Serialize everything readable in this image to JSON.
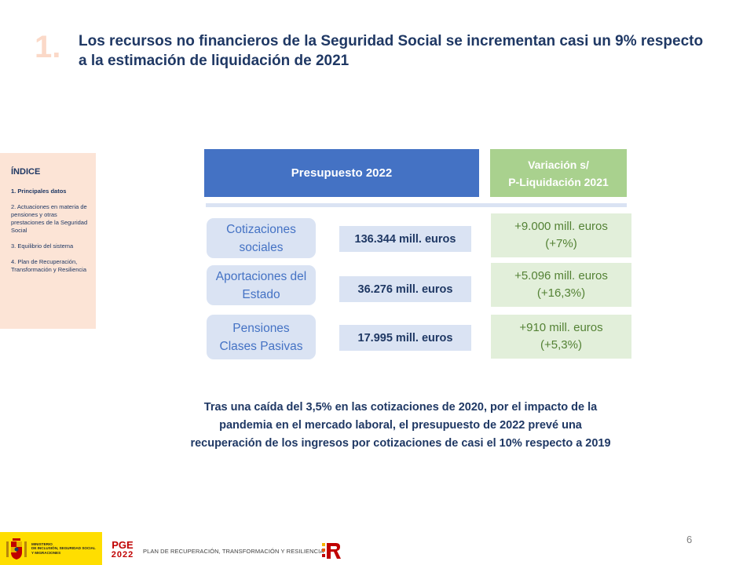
{
  "header": {
    "section_number": "1.",
    "title": "Los recursos no financieros de la Seguridad Social se incrementan casi un 9% respecto a la estimación de liquidación de 2021"
  },
  "sidebar": {
    "title": "ÍNDICE",
    "items": [
      {
        "label": "1. Principales datos",
        "active": true
      },
      {
        "label": "2. Actuaciones en materia de pensiones y otras prestaciones de la Seguridad Social",
        "active": false
      },
      {
        "label": "3. Equilibrio del sistema",
        "active": false
      },
      {
        "label": "4. Plan de Recuperación, Transformación y Resiliencia",
        "active": false
      }
    ]
  },
  "table": {
    "header_budget": "Presupuesto 2022",
    "header_variation_line1": "Variación s/",
    "header_variation_line2": "P-Liquidación 2021",
    "rows": [
      {
        "label_line1": "Cotizaciones",
        "label_line2": "sociales",
        "value": "136.344 mill. euros",
        "variation_line1": "+9.000 mill. euros",
        "variation_line2": "(+7%)"
      },
      {
        "label_line1": "Aportaciones del",
        "label_line2": "Estado",
        "value": "36.276 mill. euros",
        "variation_line1": "+5.096 mill. euros",
        "variation_line2": "(+16,3%)"
      },
      {
        "label_line1": "Pensiones",
        "label_line2": "Clases Pasivas",
        "value": "17.995 mill. euros",
        "variation_line1": "+910 mill. euros",
        "variation_line2": "(+5,3%)"
      }
    ]
  },
  "summary": {
    "line1": "Tras una caída del 3,5% en las cotizaciones de 2020, por el impacto de la",
    "line2": "pandemia en el mercado laboral, el presupuesto de 2022 prevé una",
    "line3": "recuperación de los ingresos por cotizaciones de casi el 10% respecto a 2019"
  },
  "page_number": "6",
  "footer": {
    "ministry_line1": "MINISTERIO",
    "ministry_line2": "DE INCLUSIÓN, SEGURIDAD SOCIAL",
    "ministry_line3": "Y MIGRACIONES",
    "pge_top": "PGE",
    "pge_bottom": "2022",
    "plan_text": "PLAN DE RECUPERACIÓN, TRANSFORMACIÓN Y RESILIENCIA"
  },
  "colors": {
    "title": "#1f3864",
    "section_number": "#fbd9c8",
    "budget_header": "#4472c4",
    "variation_header": "#a9d18e",
    "variation_text": "#548235",
    "sidebar_bg": "#fce4d6"
  }
}
